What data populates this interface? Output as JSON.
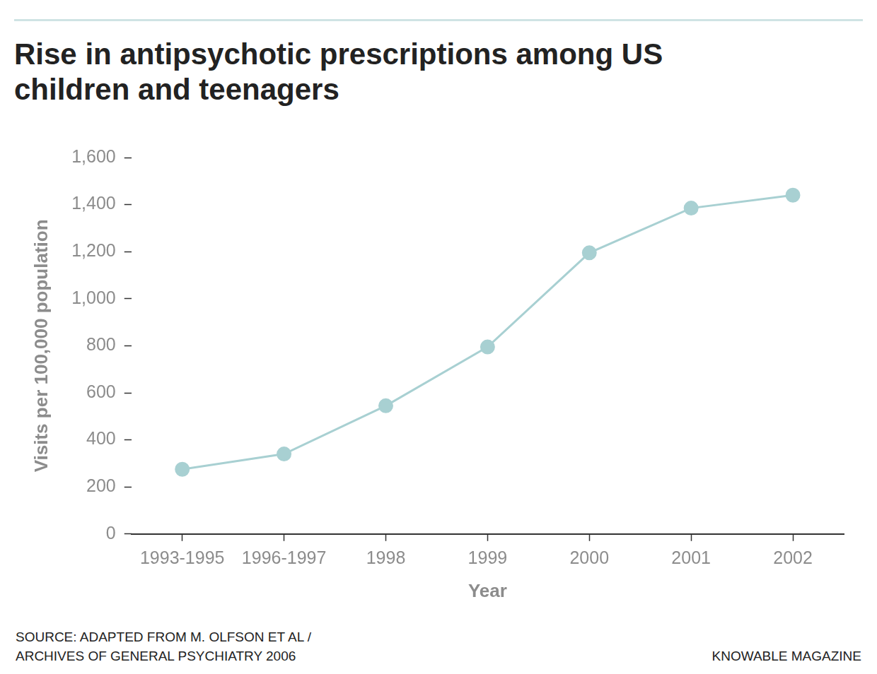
{
  "chart_data": {
    "type": "line",
    "title": "Rise in antipsychotic prescriptions among US children and teenagers",
    "x_label": "Year",
    "y_label": "Visits per 100,000 population",
    "categories": [
      "1993-1995",
      "1996-1997",
      "1998",
      "1999",
      "2000",
      "2001",
      "2002"
    ],
    "values": [
      275,
      340,
      545,
      795,
      1195,
      1385,
      1440
    ],
    "color": "#a8d0d2",
    "marker": "circle",
    "ylim": [
      0,
      1600
    ],
    "yticks": [
      0,
      200,
      400,
      600,
      800,
      {
        "value": 1000,
        "label": "1,000"
      },
      {
        "value": 1200,
        "label": "1,200"
      },
      {
        "value": 1400,
        "label": "1,400"
      },
      {
        "value": 1600,
        "label": "1,600"
      }
    ],
    "grid": false,
    "source": [
      "SOURCE: ADAPTED FROM M. OLFSON ET AL /",
      "ARCHIVES OF GENERAL PSYCHIATRY 2006"
    ],
    "credit": "KNOWABLE MAGAZINE"
  }
}
